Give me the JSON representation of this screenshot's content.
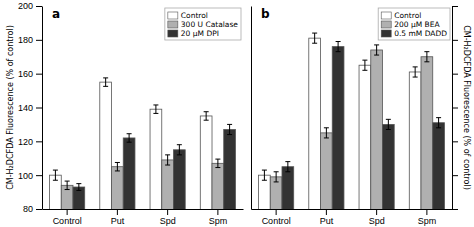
{
  "chart_data": [
    {
      "type": "bar",
      "title": "a",
      "categories": [
        "Control",
        "Put",
        "Spd",
        "Spm"
      ],
      "series": [
        {
          "name": "Control",
          "values": [
            100,
            155,
            139,
            135
          ],
          "errors": [
            3,
            2.5,
            2.5,
            2.5
          ],
          "color": "#ffffff"
        },
        {
          "name": "300 U Catalase",
          "values": [
            94,
            105,
            109,
            107
          ],
          "errors": [
            2.5,
            2.5,
            3,
            2.5
          ],
          "color": "#b0b0b0"
        },
        {
          "name": "20 μM DPI",
          "values": [
            93,
            122,
            115,
            127
          ],
          "errors": [
            2,
            2.5,
            3,
            3
          ],
          "color": "#333333"
        }
      ],
      "ylabel": "CM-H₂DCFDA Fluorescence (% of control)",
      "ylim": [
        80,
        200
      ],
      "yticks": [
        80,
        100,
        120,
        140,
        160,
        180,
        200
      ],
      "legend": "upper right"
    },
    {
      "type": "bar",
      "title": "b",
      "categories": [
        "Control",
        "Put",
        "Spd",
        "Spm"
      ],
      "series": [
        {
          "name": "Control",
          "values": [
            100,
            181,
            165,
            161
          ],
          "errors": [
            3,
            3,
            3,
            3
          ],
          "color": "#ffffff"
        },
        {
          "name": "200 μM BEA",
          "values": [
            99,
            125,
            174,
            170
          ],
          "errors": [
            3,
            3,
            3,
            3
          ],
          "color": "#b0b0b0"
        },
        {
          "name": "0.5 mM DADD",
          "values": [
            105,
            176,
            130,
            131
          ],
          "errors": [
            3,
            3,
            3,
            3
          ],
          "color": "#333333"
        }
      ],
      "ylabel": "CM-H₂DCFDA Fluorescence (% of control)",
      "ylim": [
        80,
        200
      ],
      "yticks": [
        80,
        100,
        120,
        140,
        160,
        180,
        200
      ],
      "tick_labels": "x",
      "legend": "upper right"
    }
  ]
}
